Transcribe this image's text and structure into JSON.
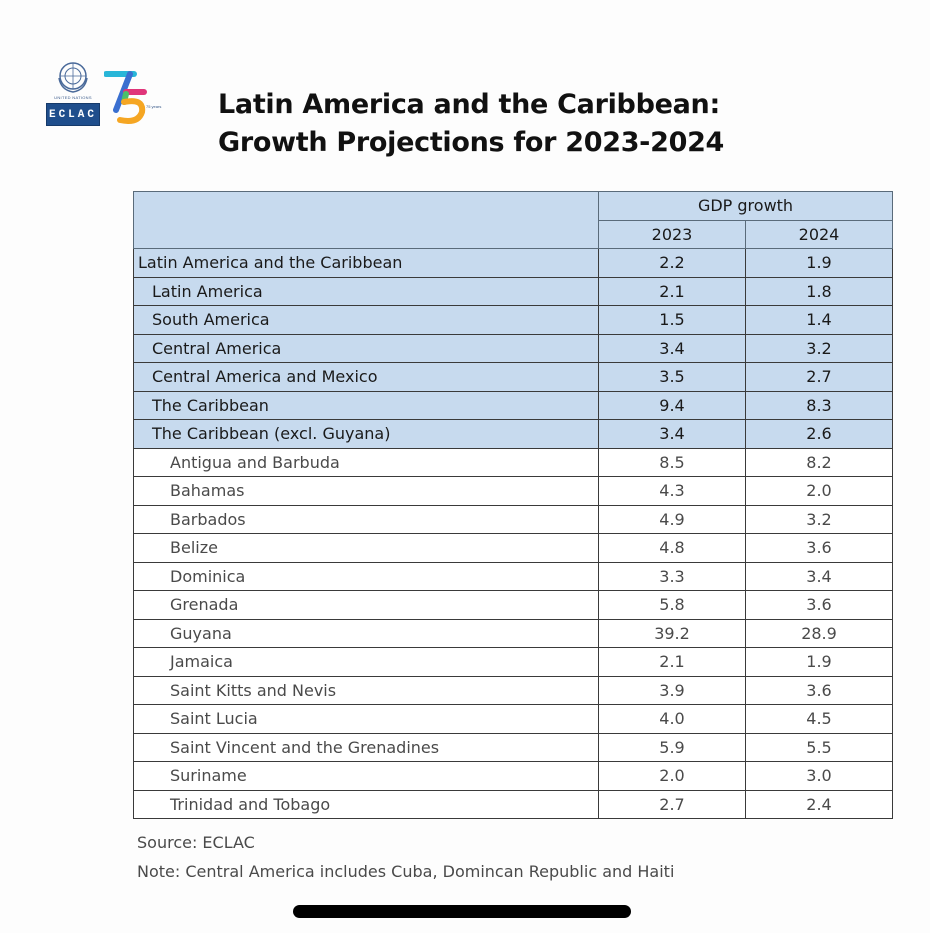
{
  "header": {
    "un_label": "UNITED NATIONS",
    "eclac_label": "ECLAC",
    "anniversary_label": "75 years",
    "title_line1": "Latin America and the Caribbean:",
    "title_line2": "Growth Projections for 2023-2024"
  },
  "table": {
    "group_header": "GDP growth",
    "years": [
      "2023",
      "2024"
    ],
    "aggregates": [
      {
        "name": "Latin America and the Caribbean",
        "y2023": "2.2",
        "y2024": "1.9"
      },
      {
        "name": "Latin America",
        "y2023": "2.1",
        "y2024": "1.8"
      },
      {
        "name": "South America",
        "y2023": "1.5",
        "y2024": "1.4"
      },
      {
        "name": "Central America",
        "y2023": "3.4",
        "y2024": "3.2"
      },
      {
        "name": "Central America and Mexico",
        "y2023": "3.5",
        "y2024": "2.7"
      },
      {
        "name": "The Caribbean",
        "y2023": "9.4",
        "y2024": "8.3"
      },
      {
        "name": "The Caribbean (excl. Guyana)",
        "y2023": "3.4",
        "y2024": "2.6"
      }
    ],
    "countries": [
      {
        "name": "Antigua and Barbuda",
        "y2023": "8.5",
        "y2024": "8.2"
      },
      {
        "name": "Bahamas",
        "y2023": "4.3",
        "y2024": "2.0"
      },
      {
        "name": "Barbados",
        "y2023": "4.9",
        "y2024": "3.2"
      },
      {
        "name": "Belize",
        "y2023": "4.8",
        "y2024": "3.6"
      },
      {
        "name": "Dominica",
        "y2023": "3.3",
        "y2024": "3.4"
      },
      {
        "name": "Grenada",
        "y2023": "5.8",
        "y2024": "3.6"
      },
      {
        "name": "Guyana",
        "y2023": "39.2",
        "y2024": "28.9"
      },
      {
        "name": "Jamaica",
        "y2023": "2.1",
        "y2024": "1.9"
      },
      {
        "name": "Saint Kitts and Nevis",
        "y2023": "3.9",
        "y2024": "3.6"
      },
      {
        "name": "Saint Lucia",
        "y2023": "4.0",
        "y2024": "4.5"
      },
      {
        "name": "Saint Vincent and the Grenadines",
        "y2023": "5.9",
        "y2024": "5.5"
      },
      {
        "name": "Suriname",
        "y2023": "2.0",
        "y2024": "3.0"
      },
      {
        "name": "Trinidad and Tobago",
        "y2023": "2.7",
        "y2024": "2.4"
      }
    ]
  },
  "footer": {
    "source": "Source: ECLAC",
    "note": "Note: Central America includes Cuba, Domincan Republic and Haiti"
  },
  "colors": {
    "aggregate_row_bg": "#c7daee",
    "eclac_blue": "#1f4e8c"
  }
}
